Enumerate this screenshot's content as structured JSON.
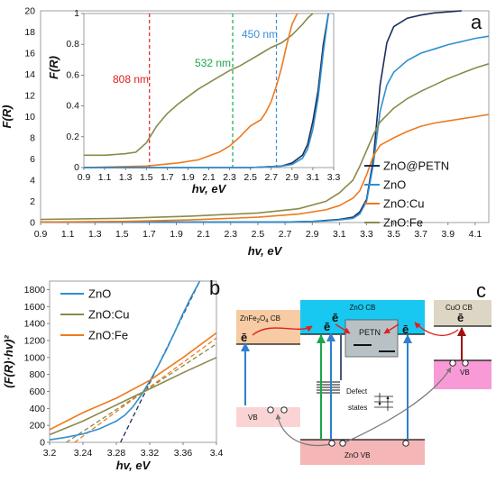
{
  "colors": {
    "zno_petn": "#1a2f5a",
    "zno": "#2f8fd0",
    "zno_cu": "#ee7a1e",
    "zno_fe": "#8a8a4a",
    "red": "#e02020",
    "green": "#1aa64a",
    "blue": "#3b8fd8",
    "cb_cyan": "#18c8f0",
    "znfe_cb": "#f7cba3",
    "cuo_cb": "#ded6c4",
    "cuo_vb": "#f79ad6",
    "zno_vb": "#f4b6b6",
    "znfe_vb": "#fad4d4"
  },
  "chart_data": [
    {
      "id": "a",
      "type": "line",
      "panel_label": "a",
      "xlabel": "hv, eV",
      "ylabel": "F(R)",
      "xlim": [
        0.9,
        4.2
      ],
      "ylim": [
        0,
        20
      ],
      "xticks": [
        "0.9",
        "1.1",
        "1.3",
        "1.5",
        "1.7",
        "1.9",
        "2.1",
        "2.3",
        "2.5",
        "2.7",
        "2.9",
        "3.1",
        "3.3",
        "3.5",
        "3.7",
        "3.9",
        "4.1"
      ],
      "yticks": [
        "0",
        "2",
        "4",
        "6",
        "8",
        "10",
        "12",
        "14",
        "16",
        "18",
        "20"
      ],
      "legend_position": "right",
      "series": [
        {
          "name": "ZnO@PETN",
          "color_key": "zno_petn",
          "x": [
            0.9,
            2.7,
            2.9,
            3.0,
            3.1,
            3.2,
            3.25,
            3.3,
            3.35,
            3.4,
            3.45,
            3.5,
            3.6,
            3.7,
            3.8,
            3.9,
            4.0,
            4.1,
            4.2
          ],
          "y": [
            0.05,
            0.05,
            0.1,
            0.2,
            0.3,
            0.5,
            1.0,
            2.2,
            6.0,
            13.0,
            17.0,
            18.5,
            19.3,
            19.6,
            19.8,
            19.9,
            20.0,
            20.0,
            20.0
          ]
        },
        {
          "name": "ZnO",
          "color_key": "zno",
          "x": [
            0.9,
            2.7,
            2.9,
            3.0,
            3.1,
            3.2,
            3.25,
            3.3,
            3.35,
            3.4,
            3.45,
            3.5,
            3.6,
            3.7,
            3.8,
            3.9,
            4.0,
            4.1,
            4.2
          ],
          "y": [
            0.05,
            0.05,
            0.1,
            0.15,
            0.25,
            0.4,
            0.8,
            2.0,
            5.5,
            10.5,
            13.0,
            14.2,
            15.3,
            16.0,
            16.4,
            16.8,
            17.1,
            17.4,
            17.6
          ]
        },
        {
          "name": "ZnO:Cu",
          "color_key": "zno_cu",
          "x": [
            0.9,
            1.5,
            2.0,
            2.5,
            2.8,
            3.0,
            3.1,
            3.2,
            3.25,
            3.3,
            3.35,
            3.4,
            3.5,
            3.6,
            3.7,
            3.8,
            3.9,
            4.0,
            4.1,
            4.2
          ],
          "y": [
            0.05,
            0.1,
            0.25,
            0.5,
            0.8,
            1.2,
            1.6,
            2.3,
            3.0,
            4.5,
            6.3,
            7.3,
            8.0,
            8.6,
            9.1,
            9.4,
            9.6,
            9.8,
            10.0,
            10.2
          ]
        },
        {
          "name": "ZnO:Fe",
          "color_key": "zno_fe",
          "x": [
            0.9,
            1.5,
            2.0,
            2.5,
            2.8,
            3.0,
            3.1,
            3.2,
            3.25,
            3.3,
            3.35,
            3.4,
            3.5,
            3.6,
            3.7,
            3.8,
            3.9,
            4.0,
            4.1,
            4.2
          ],
          "y": [
            0.3,
            0.4,
            0.6,
            0.9,
            1.3,
            2.0,
            2.8,
            4.0,
            5.3,
            6.8,
            8.3,
            9.5,
            10.8,
            11.7,
            12.4,
            13.0,
            13.6,
            14.1,
            14.6,
            15.0
          ]
        }
      ]
    },
    {
      "id": "a-inset",
      "type": "line",
      "xlabel": "hv, eV",
      "ylabel": "F(R)",
      "xlim": [
        0.9,
        3.3
      ],
      "ylim": [
        0,
        1
      ],
      "xticks": [
        "0.9",
        "1.1",
        "1.3",
        "1.5",
        "1.7",
        "1.9",
        "2.1",
        "2.3",
        "2.5",
        "2.7",
        "2.9",
        "3.1",
        "3.3"
      ],
      "yticks": [
        "0",
        "0.2",
        "0.4",
        "0.6",
        "0.8",
        "1"
      ],
      "annotations": [
        {
          "text": "808 nm",
          "x": 1.53,
          "color_key": "red"
        },
        {
          "text": "532 nm",
          "x": 2.33,
          "color_key": "green"
        },
        {
          "text": "450 nm",
          "x": 2.75,
          "color_key": "blue"
        }
      ],
      "series": [
        {
          "name": "ZnO:Fe",
          "color_key": "zno_fe",
          "x": [
            0.9,
            1.1,
            1.3,
            1.4,
            1.5,
            1.6,
            1.7,
            1.8,
            1.9,
            2.0,
            2.1,
            2.2,
            2.3,
            2.4,
            2.5,
            2.6,
            2.7,
            2.8,
            2.9,
            3.0,
            3.05,
            3.1
          ],
          "y": [
            0.08,
            0.08,
            0.09,
            0.1,
            0.16,
            0.27,
            0.35,
            0.41,
            0.46,
            0.51,
            0.55,
            0.59,
            0.63,
            0.66,
            0.7,
            0.74,
            0.78,
            0.81,
            0.86,
            0.93,
            0.97,
            1.0
          ]
        },
        {
          "name": "ZnO:Cu",
          "color_key": "zno_cu",
          "x": [
            0.9,
            1.5,
            1.8,
            2.0,
            2.2,
            2.3,
            2.4,
            2.5,
            2.6,
            2.65,
            2.7,
            2.75,
            2.8,
            2.85,
            2.9,
            2.95
          ],
          "y": [
            0.0,
            0.01,
            0.03,
            0.05,
            0.1,
            0.14,
            0.2,
            0.27,
            0.31,
            0.36,
            0.43,
            0.53,
            0.65,
            0.8,
            0.93,
            1.0
          ]
        },
        {
          "name": "ZnO@PETN",
          "color_key": "zno_petn",
          "x": [
            0.9,
            2.5,
            2.8,
            2.9,
            3.0,
            3.05,
            3.1,
            3.15,
            3.2,
            3.25
          ],
          "y": [
            0.0,
            0.0,
            0.01,
            0.03,
            0.08,
            0.15,
            0.3,
            0.5,
            0.8,
            1.0
          ]
        },
        {
          "name": "ZnO",
          "color_key": "zno",
          "x": [
            0.9,
            2.5,
            2.8,
            2.9,
            3.0,
            3.05,
            3.1,
            3.15,
            3.2,
            3.25
          ],
          "y": [
            0.0,
            0.0,
            0.01,
            0.02,
            0.06,
            0.12,
            0.25,
            0.45,
            0.75,
            1.0
          ]
        }
      ]
    },
    {
      "id": "b",
      "type": "line",
      "panel_label": "b",
      "xlabel": "hv, eV",
      "ylabel": "(F(R)·hv)²",
      "xlim": [
        3.2,
        3.4
      ],
      "ylim": [
        0,
        1900
      ],
      "xticks": [
        "3.2",
        "3.24",
        "3.28",
        "3.32",
        "3.36",
        "3.4"
      ],
      "yticks": [
        "0",
        "200",
        "400",
        "600",
        "800",
        "1000",
        "1200",
        "1400",
        "1600",
        "1800"
      ],
      "legend_position": "top-right",
      "series": [
        {
          "name": "ZnO",
          "color_key": "zno",
          "x": [
            3.2,
            3.22,
            3.24,
            3.26,
            3.28,
            3.29,
            3.3,
            3.31,
            3.32,
            3.33,
            3.34,
            3.35,
            3.36,
            3.37,
            3.38
          ],
          "y": [
            30,
            60,
            100,
            160,
            250,
            320,
            420,
            560,
            720,
            900,
            1090,
            1300,
            1520,
            1720,
            1900
          ]
        },
        {
          "name": "ZnO:Cu",
          "color_key": "zno_fe",
          "x": [
            3.2,
            3.24,
            3.28,
            3.32,
            3.36,
            3.4
          ],
          "y": [
            90,
            250,
            440,
            630,
            820,
            1000
          ]
        },
        {
          "name": "ZnO:Fe",
          "color_key": "zno_cu",
          "x": [
            3.2,
            3.24,
            3.28,
            3.32,
            3.36,
            3.4
          ],
          "y": [
            150,
            350,
            520,
            730,
            1000,
            1290
          ]
        }
      ],
      "fit_lines": [
        {
          "color_key": "zno_petn",
          "x": [
            3.285,
            3.38
          ],
          "y": [
            0,
            1900
          ]
        },
        {
          "color_key": "zno_fe",
          "x": [
            3.22,
            3.4
          ],
          "y": [
            0,
            1160
          ]
        },
        {
          "color_key": "zno_cu",
          "x": [
            3.23,
            3.4
          ],
          "y": [
            0,
            1230
          ]
        }
      ]
    }
  ],
  "diagram_c": {
    "panel_label": "c",
    "zno_cb": "ZnO CB",
    "zno_vb": "ZnO VB",
    "znfe_cb_main": "ZnFe",
    "znfe_cb_sub1": "2",
    "znfe_cb_o": "O",
    "znfe_cb_sub2": "4",
    "znfe_cb_tail": " CB",
    "cuo_cb": "CuO CB",
    "petn": "PETN",
    "vb_left": "VB",
    "vb_right": "VB",
    "defect_1": "Defect",
    "defect_2": "states",
    "electron": "ē"
  }
}
